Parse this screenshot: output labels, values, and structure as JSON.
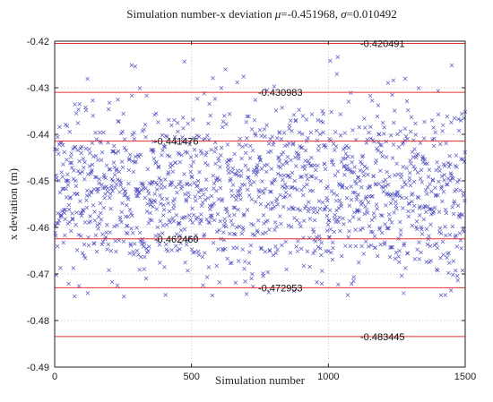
{
  "chart_data": {
    "type": "scatter",
    "title_prefix": "Simulation number-x deviation ",
    "mu_symbol": "μ",
    "mu_value": "=-0.451968, ",
    "sigma_symbol": "σ",
    "sigma_value": "=0.010492",
    "xlabel": "Simulation number",
    "ylabel": "x deviation (m)",
    "xlim": [
      0,
      1500
    ],
    "ylim": [
      -0.49,
      -0.42
    ],
    "x_ticks": [
      0,
      500,
      1000,
      1500
    ],
    "x_tick_labels": [
      "0",
      "500",
      "1000",
      "1500"
    ],
    "y_ticks": [
      -0.42,
      -0.43,
      -0.44,
      -0.45,
      -0.46,
      -0.47,
      -0.48,
      -0.49
    ],
    "y_tick_labels": [
      "-0.42",
      "-0.43",
      "-0.44",
      "-0.45",
      "-0.46",
      "-0.47",
      "-0.48",
      "-0.49"
    ],
    "grid": true,
    "marker": "x",
    "marker_color": "#3a3ab8",
    "reference_line_color": "#e03030",
    "num_points": 1500,
    "mean": -0.451968,
    "std": 0.010492,
    "reference_lines": [
      {
        "value": -0.420491,
        "label": "-0.420491"
      },
      {
        "value": -0.430983,
        "label": "-0.430983"
      },
      {
        "value": -0.441476,
        "label": "-0.441476"
      },
      {
        "value": -0.46246,
        "label": "-0.462460"
      },
      {
        "value": -0.472953,
        "label": "-0.472953"
      },
      {
        "value": -0.483445,
        "label": "-0.483445"
      }
    ]
  }
}
